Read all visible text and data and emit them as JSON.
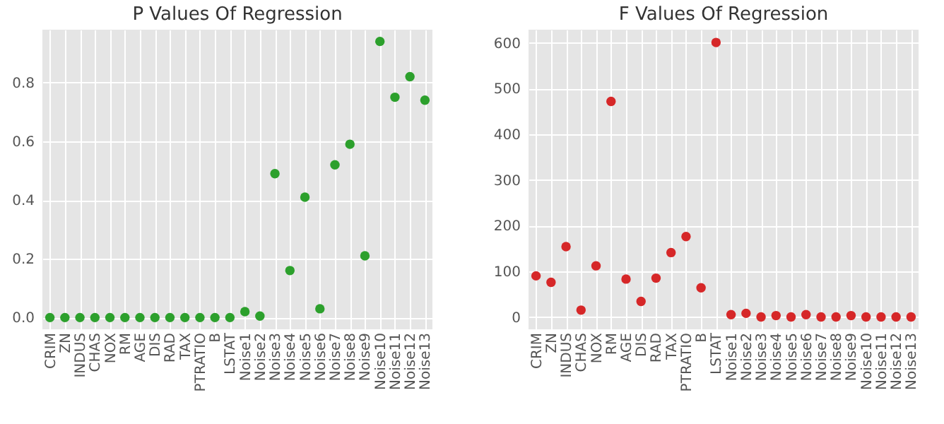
{
  "chart_data": [
    {
      "type": "scatter",
      "title": "P Values Of Regression",
      "categories": [
        "CRIM",
        "ZN",
        "INDUS",
        "CHAS",
        "NOX",
        "RM",
        "AGE",
        "DIS",
        "RAD",
        "TAX",
        "PTRATIO",
        "B",
        "LSTAT",
        "Noise1",
        "Noise2",
        "Noise3",
        "Noise4",
        "Noise5",
        "Noise6",
        "Noise7",
        "Noise8",
        "Noise9",
        "Noise10",
        "Noise11",
        "Noise12",
        "Noise13"
      ],
      "series": [
        {
          "color": "#2ca02c",
          "values": [
            0,
            0,
            0,
            0,
            0,
            0,
            0,
            0,
            0,
            0,
            0,
            0,
            0,
            0.02,
            0.005,
            0.49,
            0.16,
            0.41,
            0.03,
            0.52,
            0.59,
            0.21,
            0.94,
            0.75,
            0.82,
            0.74
          ]
        }
      ],
      "ylim": [
        -0.04,
        0.98
      ],
      "yticks": [
        {
          "value": 0,
          "label": "0.0"
        },
        0.2,
        0.4,
        0.6,
        0.8
      ],
      "grid": true,
      "marker": "circle"
    },
    {
      "type": "scatter",
      "title": "F Values Of Regression",
      "categories": [
        "CRIM",
        "ZN",
        "INDUS",
        "CHAS",
        "NOX",
        "RM",
        "AGE",
        "DIS",
        "RAD",
        "TAX",
        "PTRATIO",
        "B",
        "LSTAT",
        "Noise1",
        "Noise2",
        "Noise3",
        "Noise4",
        "Noise5",
        "Noise6",
        "Noise7",
        "Noise8",
        "Noise9",
        "Noise10",
        "Noise11",
        "Noise12",
        "Noise13"
      ],
      "series": [
        {
          "color": "#d62728",
          "values": [
            90,
            76,
            154,
            15,
            112,
            472,
            83,
            34,
            85,
            141,
            176,
            64,
            601,
            5,
            8,
            0,
            3,
            0,
            5,
            0,
            0,
            3,
            0,
            0,
            0,
            0
          ]
        }
      ],
      "ylim": [
        -27,
        629
      ],
      "yticks": [
        0,
        100,
        200,
        300,
        400,
        500,
        600
      ],
      "grid": true,
      "marker": "circle"
    }
  ]
}
